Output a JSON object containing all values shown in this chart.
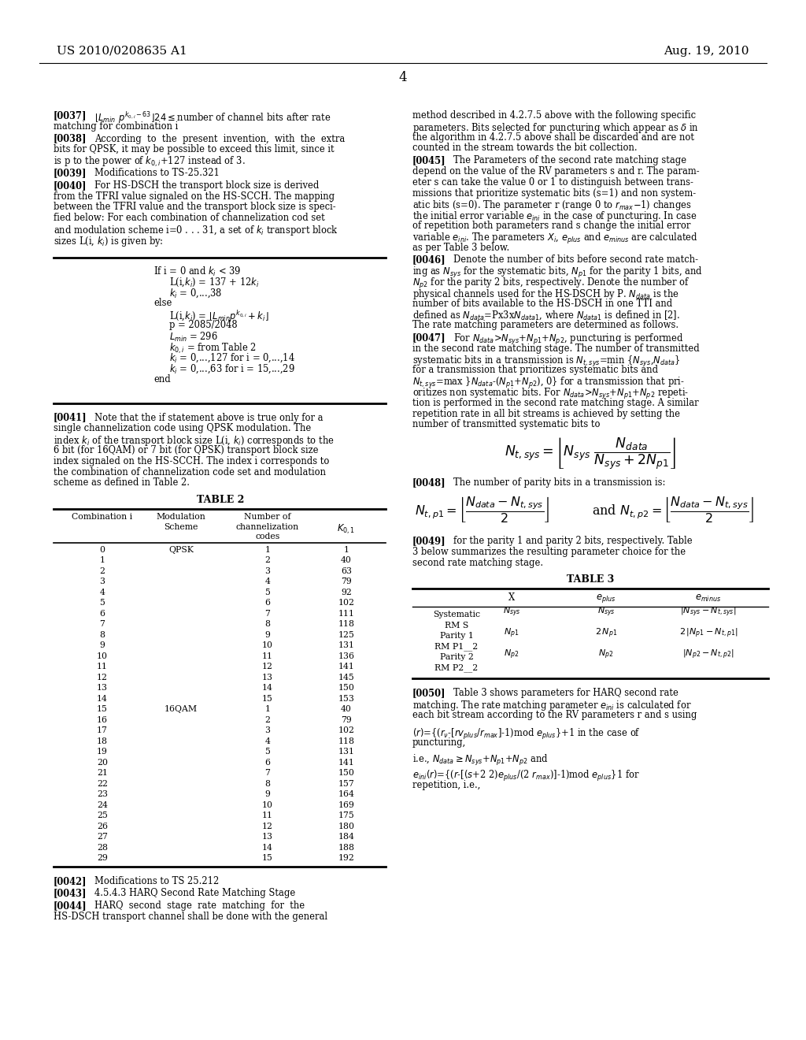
{
  "bg_color": "#ffffff",
  "header_left": "US 2010/0208635 A1",
  "header_right": "Aug. 19, 2010",
  "page_number": "4",
  "table2_data": [
    [
      "0",
      "QPSK",
      "1",
      "1"
    ],
    [
      "1",
      "",
      "2",
      "40"
    ],
    [
      "2",
      "",
      "3",
      "63"
    ],
    [
      "3",
      "",
      "4",
      "79"
    ],
    [
      "4",
      "",
      "5",
      "92"
    ],
    [
      "5",
      "",
      "6",
      "102"
    ],
    [
      "6",
      "",
      "7",
      "111"
    ],
    [
      "7",
      "",
      "8",
      "118"
    ],
    [
      "8",
      "",
      "9",
      "125"
    ],
    [
      "9",
      "",
      "10",
      "131"
    ],
    [
      "10",
      "",
      "11",
      "136"
    ],
    [
      "11",
      "",
      "12",
      "141"
    ],
    [
      "12",
      "",
      "13",
      "145"
    ],
    [
      "13",
      "",
      "14",
      "150"
    ],
    [
      "14",
      "",
      "15",
      "153"
    ],
    [
      "15",
      "16QAM",
      "1",
      "40"
    ],
    [
      "16",
      "",
      "2",
      "79"
    ],
    [
      "17",
      "",
      "3",
      "102"
    ],
    [
      "18",
      "",
      "4",
      "118"
    ],
    [
      "19",
      "",
      "5",
      "131"
    ],
    [
      "20",
      "",
      "6",
      "141"
    ],
    [
      "21",
      "",
      "7",
      "150"
    ],
    [
      "22",
      "",
      "8",
      "157"
    ],
    [
      "23",
      "",
      "9",
      "164"
    ],
    [
      "24",
      "",
      "10",
      "169"
    ],
    [
      "25",
      "",
      "11",
      "175"
    ],
    [
      "26",
      "",
      "12",
      "180"
    ],
    [
      "27",
      "",
      "13",
      "184"
    ],
    [
      "28",
      "",
      "14",
      "188"
    ],
    [
      "29",
      "",
      "15",
      "192"
    ]
  ]
}
